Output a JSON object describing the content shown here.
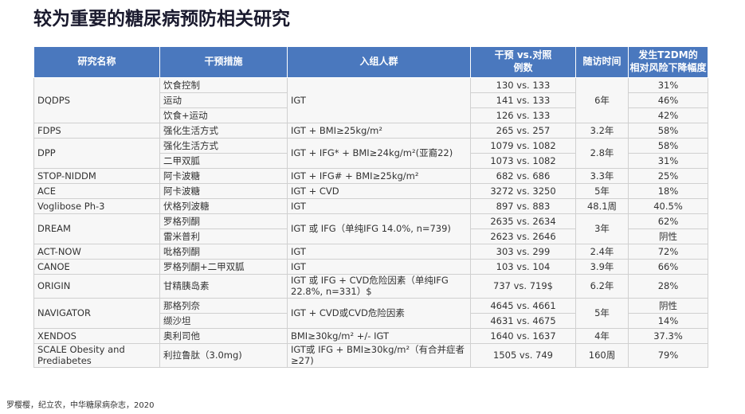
{
  "title": "较为重要的糖尿病预防相关研究",
  "table": {
    "header": [
      [
        "研究名称"
      ],
      [
        "干预措施"
      ],
      [
        "入组人群"
      ],
      [
        "干预 vs.对照",
        "例数"
      ],
      [
        "随访时间"
      ],
      [
        "发生T2DM的",
        "相对风险下降幅度"
      ]
    ],
    "studies": [
      {
        "name": "DQDPS",
        "population": "IGT",
        "followup": "6年",
        "arms": [
          {
            "intervention": "饮食控制",
            "comparison": "130 vs. 133",
            "reduction": "31%"
          },
          {
            "intervention": "运动",
            "comparison": "141 vs. 133",
            "reduction": "46%"
          },
          {
            "intervention": "饮食+运动",
            "comparison": "126 vs. 133",
            "reduction": "42%"
          }
        ]
      },
      {
        "name": "FDPS",
        "population": "IGT + BMI≥25kg/m²",
        "followup": "3.2年",
        "arms": [
          {
            "intervention": "强化生活方式",
            "comparison": "265 vs. 257",
            "reduction": "58%"
          }
        ]
      },
      {
        "name": "DPP",
        "population": "IGT + IFG* + BMI≥24kg/m²(亚裔22)",
        "followup": "2.8年",
        "arms": [
          {
            "intervention": "强化生活方式",
            "comparison": "1079 vs. 1082",
            "reduction": "58%"
          },
          {
            "intervention": "二甲双胍",
            "comparison": "1073 vs. 1082",
            "reduction": "31%"
          }
        ]
      },
      {
        "name": "STOP-NIDDM",
        "population": "IGT + IFG# + BMI≥25kg/m²",
        "followup": "3.3年",
        "arms": [
          {
            "intervention": "阿卡波糖",
            "comparison": "682 vs. 686",
            "reduction": "25%"
          }
        ]
      },
      {
        "name": "ACE",
        "population": "IGT + CVD",
        "followup": "5年",
        "arms": [
          {
            "intervention": "阿卡波糖",
            "comparison": "3272 vs. 3250",
            "reduction": "18%"
          }
        ]
      },
      {
        "name": "Voglibose Ph-3",
        "population": "IGT",
        "followup": "48.1周",
        "arms": [
          {
            "intervention": "伏格列波糖",
            "comparison": "897 vs. 883",
            "reduction": "40.5%"
          }
        ]
      },
      {
        "name": "DREAM",
        "population": "IGT 或 IFG（单纯IFG 14.0%, n=739)",
        "followup": "3年",
        "arms": [
          {
            "intervention": "罗格列酮",
            "comparison": "2635 vs. 2634",
            "reduction": "62%"
          },
          {
            "intervention": "雷米普利",
            "comparison": "2623 vs. 2646",
            "reduction": "阴性"
          }
        ]
      },
      {
        "name": "ACT-NOW",
        "population": "IGT",
        "followup": "2.4年",
        "arms": [
          {
            "intervention": "吡格列酮",
            "comparison": "303 vs. 299",
            "reduction": "72%"
          }
        ]
      },
      {
        "name": "CANOE",
        "population": "IGT",
        "followup": "3.9年",
        "arms": [
          {
            "intervention": "罗格列酮+二甲双胍",
            "comparison": "103 vs. 104",
            "reduction": "66%"
          }
        ]
      },
      {
        "name": "ORIGIN",
        "population": "IGT 或 IFG + CVD危险因素（单纯IFG 22.8%, n=331）$",
        "followup": "6.2年",
        "arms": [
          {
            "intervention": "甘精胰岛素",
            "comparison": "737 vs. 719$",
            "reduction": "28%"
          }
        ]
      },
      {
        "name": "NAVIGATOR",
        "population": "IGT + CVD或CVD危险因素",
        "followup": "5年",
        "arms": [
          {
            "intervention": "那格列奈",
            "comparison": "4645 vs. 4661",
            "reduction": "阴性"
          },
          {
            "intervention": "缬沙坦",
            "comparison": "4631 vs. 4675",
            "reduction": "14%"
          }
        ]
      },
      {
        "name": "XENDOS",
        "population": "BMI≥30kg/m² +/- IGT",
        "followup": "4年",
        "arms": [
          {
            "intervention": "奥利司他",
            "comparison": "1640 vs. 1637",
            "reduction": "37.3%"
          }
        ]
      },
      {
        "name": "SCALE Obesity and Prediabetes",
        "population": "IGT或 IFG + BMI≥30kg/m²（有合并症者≥27)",
        "followup": "160周",
        "arms": [
          {
            "intervention": "利拉鲁肽（3.0mg)",
            "comparison": "1505 vs. 749",
            "reduction": "79%"
          }
        ]
      }
    ]
  },
  "source": "罗樱樱，纪立农，中华糖尿病杂志，2020"
}
